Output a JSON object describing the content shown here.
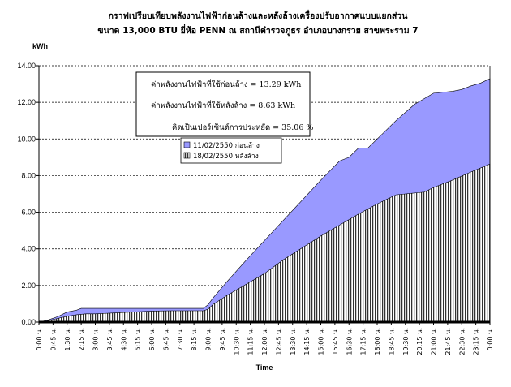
{
  "chart_data": {
    "type": "area",
    "title_line1": "กราฟเปรียบเทียบพลังงานไฟฟ้าก่อนล้างและหลังล้างเครื่องปรับอากาศแบบแยกส่วน",
    "title_line2": "ขนาด 13,000 BTU  ยี่ห้อ PENN   ณ สถานีตำรวจภูธร อำเภอบางกรวย สาขพระราม 7",
    "ylabel": "kWh",
    "xlabel": "Time",
    "ylim": [
      0,
      14
    ],
    "yticks": [
      "0.00",
      "2.00",
      "4.00",
      "6.00",
      "8.00",
      "10.00",
      "12.00",
      "14.00"
    ],
    "grid": true,
    "x_labels": [
      "0:00 น.",
      "0:45 น.",
      "1:30 น.",
      "2:15 น.",
      "3:00 น.",
      "3:45 น.",
      "4:30 น.",
      "5:15 น.",
      "6:00 น.",
      "6:45 น.",
      "7:30 น.",
      "8:15 น.",
      "9:00 น.",
      "9:45 น.",
      "10:30 น.",
      "11:15 น.",
      "12:00 น.",
      "12:45 น.",
      "13:30 น.",
      "14:15 น.",
      "15:00 น.",
      "15:45 น.",
      "16:30 น.",
      "17:15 น.",
      "18:00 น.",
      "18:45 น.",
      "19:30 น.",
      "20:15 น.",
      "21:00 น.",
      "21:45 น.",
      "22:30 น.",
      "23:15 น.",
      "0:00 น."
    ],
    "series": [
      {
        "name": "11/02/2550 ก่อนล้าง",
        "color": "#9999ff",
        "x": [
          0,
          0.5,
          1.0,
          1.5,
          2.0,
          2.25,
          2.5,
          3,
          4,
          5,
          6,
          7,
          8,
          8.75,
          9,
          9.25,
          10,
          11,
          12,
          13,
          14,
          15,
          16,
          16.5,
          17,
          17.5,
          18,
          19,
          20,
          21,
          22,
          22.5,
          23,
          23.5,
          24
        ],
        "values": [
          0.0,
          0.12,
          0.3,
          0.55,
          0.65,
          0.75,
          0.75,
          0.75,
          0.75,
          0.75,
          0.75,
          0.75,
          0.75,
          0.75,
          0.95,
          1.3,
          2.2,
          3.35,
          4.45,
          5.55,
          6.65,
          7.75,
          8.8,
          9.0,
          9.5,
          9.5,
          10.0,
          11.0,
          11.9,
          12.5,
          12.6,
          12.7,
          12.9,
          13.05,
          13.29
        ]
      },
      {
        "name": "18/02/2550 หลังล้าง",
        "color": "#ffffff",
        "x": [
          0,
          0.5,
          1.0,
          1.5,
          2.0,
          2.5,
          3,
          4,
          5,
          6,
          7,
          8,
          8.75,
          9,
          9.25,
          10,
          11,
          12,
          13,
          14,
          15,
          16,
          17,
          18,
          19,
          19.5,
          20,
          20.5,
          21,
          22,
          23,
          24
        ],
        "values": [
          0.0,
          0.08,
          0.2,
          0.32,
          0.4,
          0.45,
          0.45,
          0.5,
          0.55,
          0.6,
          0.62,
          0.62,
          0.62,
          0.7,
          0.95,
          1.45,
          2.05,
          2.65,
          3.4,
          4.05,
          4.7,
          5.3,
          5.9,
          6.45,
          6.95,
          7.0,
          7.05,
          7.1,
          7.35,
          7.75,
          8.2,
          8.63
        ]
      }
    ],
    "annotations": [
      "ค่าพลังงานไฟฟ้าที่ใช้ก่อนล้าง = 13.29 kWh",
      "ค่าพลังงานไฟฟ้าที่ใช้หลังล้าง  = 8.63  kWh",
      "คิดเป็นเปอร์เซ็นต์การประหยัด = 35.06 %"
    ],
    "legend_placement": "center"
  }
}
